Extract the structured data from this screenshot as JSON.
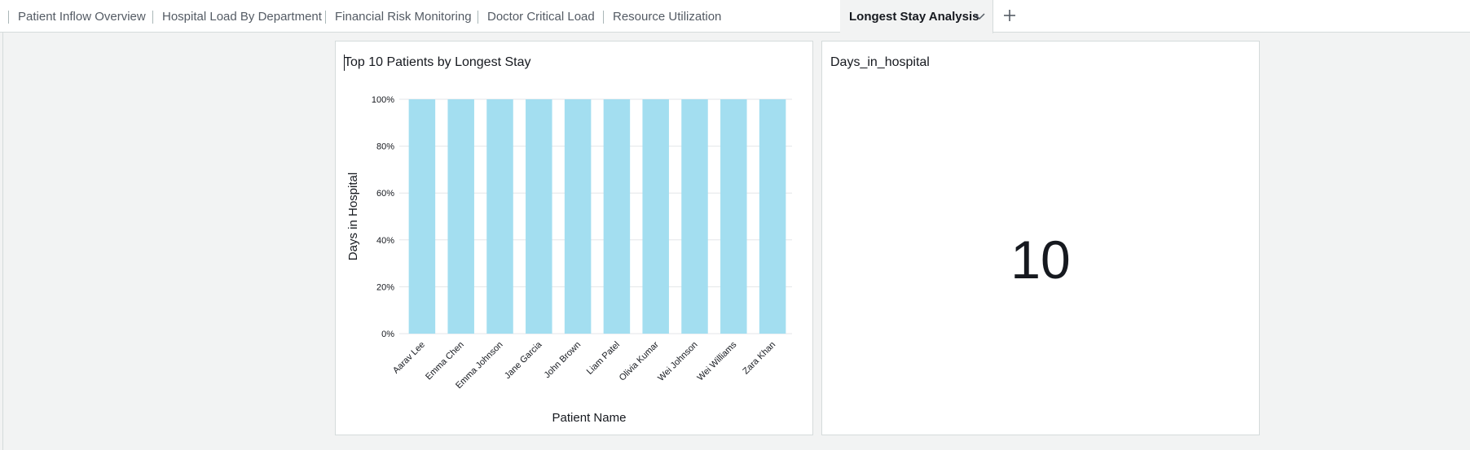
{
  "tabs": [
    {
      "label": "Patient Inflow Overview",
      "active": false
    },
    {
      "label": "Hospital Load By Department",
      "active": false
    },
    {
      "label": "Financial Risk Monitoring",
      "active": false
    },
    {
      "label": "Doctor Critical Load",
      "active": false
    },
    {
      "label": "Resource Utilization",
      "active": false
    },
    {
      "label": "Longest Stay Analysis",
      "active": true
    }
  ],
  "icons": {
    "tab_menu": "chevron-down-icon",
    "add_tab": "plus-icon"
  },
  "bar_panel": {
    "title": "Top 10 Patients by Longest Stay"
  },
  "kpi_panel": {
    "title": "Days_in_hospital",
    "value": "10"
  },
  "chart_data": {
    "type": "bar",
    "title": "Top 10 Patients by Longest Stay",
    "xlabel": "Patient Name",
    "ylabel": "Days in Hospital",
    "categories": [
      "Aarav Lee",
      "Emma Chen",
      "Emma Johnson",
      "Jane Garcia",
      "John Brown",
      "Liam Patel",
      "Olivia Kumar",
      "Wei Johnson",
      "Wei Williams",
      "Zara Khan"
    ],
    "values": [
      100,
      100,
      100,
      100,
      100,
      100,
      100,
      100,
      100,
      100
    ],
    "yticks": [
      "0%",
      "20%",
      "40%",
      "60%",
      "80%",
      "100%"
    ],
    "ylim": [
      0,
      100
    ],
    "grid": true,
    "bar_color": "#a3def0"
  }
}
